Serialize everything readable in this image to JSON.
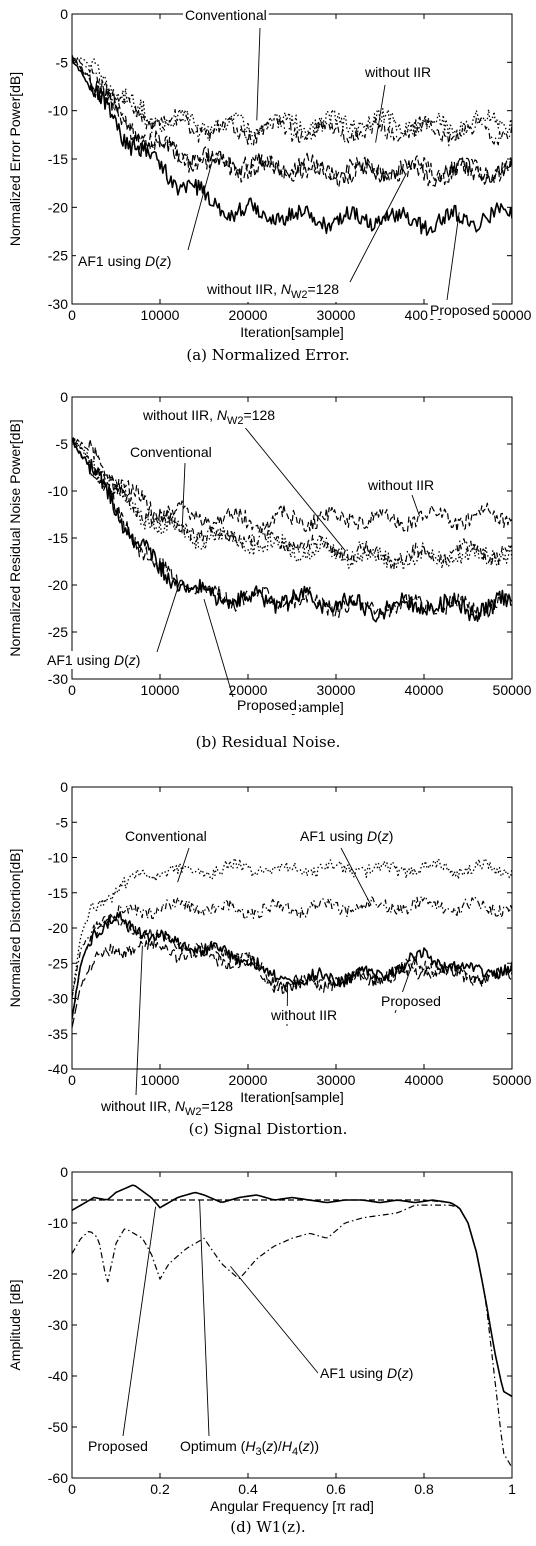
{
  "chart_data": [
    {
      "type": "line",
      "caption": "(a) Normalized Error.",
      "xlabel": "Iteration[sample]",
      "ylabel": "Normalized Error Power[dB]",
      "xlim": [
        0,
        50000
      ],
      "ylim": [
        -30,
        0
      ],
      "xticks": [
        0,
        10000,
        20000,
        30000,
        40000,
        50000
      ],
      "yticks": [
        0,
        -5,
        -10,
        -15,
        -20,
        -25,
        -30
      ],
      "series": [
        {
          "name": "Conventional",
          "style": "dotted",
          "x": [
            0,
            2500,
            5000,
            7500,
            10000,
            12500,
            15000,
            17500,
            20000,
            25000,
            30000,
            35000,
            40000,
            45000,
            50000
          ],
          "y": [
            -4.5,
            -5.5,
            -8,
            -10,
            -10.8,
            -11.2,
            -11.4,
            -11.5,
            -11.6,
            -11.3,
            -11.4,
            -11.2,
            -11.5,
            -11.3,
            -10.8
          ]
        },
        {
          "name": "without IIR",
          "style": "dashdot",
          "x": [
            0,
            2500,
            5000,
            7500,
            10000,
            12500,
            15000,
            17500,
            20000,
            25000,
            30000,
            35000,
            40000,
            45000,
            50000
          ],
          "y": [
            -4.5,
            -6,
            -8.5,
            -10.5,
            -11,
            -11.5,
            -12,
            -12,
            -12.2,
            -12,
            -12,
            -12.2,
            -12,
            -12.3,
            -12
          ]
        },
        {
          "name": "without IIR, N_W2=128",
          "style": "dashed",
          "x": [
            0,
            2500,
            5000,
            7500,
            10000,
            12500,
            15000,
            17500,
            20000,
            25000,
            30000,
            35000,
            40000,
            45000,
            50000
          ],
          "y": [
            -4.5,
            -7,
            -10,
            -12.5,
            -13.8,
            -14.8,
            -15.3,
            -15.6,
            -16,
            -16.2,
            -16.5,
            -16.4,
            -16.1,
            -16.3,
            -16
          ]
        },
        {
          "name": "AF1 using D(z)",
          "style": "longdash",
          "x": [
            0,
            2500,
            5000,
            7500,
            10000,
            12500,
            15000,
            17500,
            20000,
            25000,
            30000,
            35000,
            40000,
            45000,
            50000
          ],
          "y": [
            -4.5,
            -7,
            -10.5,
            -12.5,
            -13.5,
            -14.5,
            -15,
            -15.2,
            -15.5,
            -15.8,
            -16,
            -16.2,
            -16.5,
            -16.3,
            -16.2
          ]
        },
        {
          "name": "Proposed",
          "style": "solid",
          "x": [
            0,
            2500,
            5000,
            7500,
            10000,
            12500,
            15000,
            17500,
            20000,
            25000,
            30000,
            35000,
            40000,
            45000,
            50000
          ],
          "y": [
            -4.5,
            -8,
            -11.5,
            -14,
            -16,
            -17.5,
            -19,
            -20,
            -20.5,
            -21,
            -21.3,
            -21,
            -21.5,
            -21,
            -21
          ]
        }
      ],
      "annotations": [
        {
          "label": "Conventional",
          "html": [
            "Conventional"
          ]
        },
        {
          "label": "without IIR",
          "html": [
            "without IIR"
          ]
        },
        {
          "label": "AF1 using D(z)",
          "html": [
            "AF1 using ",
            "D",
            "(",
            "z",
            ")"
          ]
        },
        {
          "label": "without IIR, N W2=128",
          "html": [
            "without IIR, ",
            "N",
            "W2",
            "=128"
          ]
        },
        {
          "label": "Proposed",
          "html": [
            "Proposed"
          ]
        }
      ]
    },
    {
      "type": "line",
      "caption": "(b) Residual Noise.",
      "xlabel": "Iteration[sample]",
      "ylabel": "Normalized Residual Noise Power[dB]",
      "xlim": [
        0,
        50000
      ],
      "ylim": [
        -30,
        0
      ],
      "xticks": [
        0,
        10000,
        20000,
        30000,
        40000,
        50000
      ],
      "yticks": [
        0,
        -5,
        -10,
        -15,
        -20,
        -25,
        -30
      ],
      "series": [
        {
          "name": "without IIR, N_W2=128",
          "style": "dashed",
          "x": [
            0,
            2500,
            5000,
            7500,
            10000,
            15000,
            20000,
            25000,
            30000,
            35000,
            40000,
            45000,
            50000
          ],
          "y": [
            -4.5,
            -6,
            -9,
            -11,
            -12,
            -13,
            -13,
            -13,
            -12.8,
            -13,
            -12.8,
            -12.8,
            -12.5
          ]
        },
        {
          "name": "Conventional",
          "style": "dotted",
          "x": [
            0,
            2500,
            5000,
            7500,
            10000,
            15000,
            20000,
            25000,
            30000,
            35000,
            40000,
            45000,
            50000
          ],
          "y": [
            -4.5,
            -7,
            -10,
            -12.5,
            -13.5,
            -15,
            -15.5,
            -16,
            -16.5,
            -17.5,
            -17,
            -17,
            -16.5
          ]
        },
        {
          "name": "without IIR",
          "style": "dashdot",
          "x": [
            0,
            2500,
            5000,
            7500,
            10000,
            15000,
            20000,
            25000,
            30000,
            35000,
            40000,
            45000,
            50000
          ],
          "y": [
            -4.5,
            -7,
            -10,
            -12,
            -13,
            -14.5,
            -15,
            -15.5,
            -16,
            -17,
            -17,
            -16.5,
            -16.5
          ]
        },
        {
          "name": "AF1 using D(z)",
          "style": "longdash",
          "x": [
            0,
            2500,
            5000,
            7500,
            10000,
            15000,
            20000,
            25000,
            30000,
            35000,
            40000,
            45000,
            50000
          ],
          "y": [
            -4.5,
            -8,
            -12,
            -15.5,
            -18.5,
            -21,
            -21.5,
            -21.5,
            -22,
            -22.5,
            -22,
            -22.5,
            -22
          ]
        },
        {
          "name": "Proposed",
          "style": "solid",
          "x": [
            0,
            2500,
            5000,
            7500,
            10000,
            15000,
            20000,
            25000,
            30000,
            35000,
            40000,
            45000,
            50000
          ],
          "y": [
            -4.5,
            -8,
            -12,
            -15.5,
            -18.5,
            -21,
            -21.5,
            -21.5,
            -22,
            -22.5,
            -22,
            -22.5,
            -22
          ]
        }
      ],
      "annotations": [
        {
          "label": "without IIR, N W2=128",
          "html": [
            "without IIR, ",
            "N",
            "W2",
            "=128"
          ]
        },
        {
          "label": "Conventional",
          "html": [
            "Conventional"
          ]
        },
        {
          "label": "without IIR",
          "html": [
            "without IIR"
          ]
        },
        {
          "label": "AF1 using D(z)",
          "html": [
            "AF1 using ",
            "D",
            "(",
            "z",
            ")"
          ]
        },
        {
          "label": "Proposed",
          "html": [
            "Proposed"
          ]
        }
      ]
    },
    {
      "type": "line",
      "caption": "(c) Signal Distortion.",
      "xlabel": "Iteration[sample]",
      "ylabel": "Normalized Distortion[dB]",
      "xlim": [
        0,
        50000
      ],
      "ylim": [
        -40,
        0
      ],
      "xticks": [
        0,
        10000,
        20000,
        30000,
        40000,
        50000
      ],
      "yticks": [
        0,
        -5,
        -10,
        -15,
        -20,
        -25,
        -30,
        -35,
        -40
      ],
      "series": [
        {
          "name": "Conventional",
          "style": "dotted",
          "x": [
            0,
            1000,
            2500,
            5000,
            7500,
            10000,
            15000,
            20000,
            25000,
            30000,
            35000,
            40000,
            45000,
            50000
          ],
          "y": [
            -30,
            -21,
            -17,
            -14.5,
            -13,
            -12,
            -11.8,
            -11.5,
            -11.7,
            -11.6,
            -11.8,
            -11.5,
            -11.6,
            -11.5
          ]
        },
        {
          "name": "AF1 using D(z)",
          "style": "dashdot",
          "x": [
            0,
            1000,
            2500,
            5000,
            7500,
            10000,
            15000,
            20000,
            25000,
            30000,
            35000,
            40000,
            45000,
            50000
          ],
          "y": [
            -30,
            -23,
            -20,
            -18,
            -17.5,
            -17,
            -17,
            -17.5,
            -17.2,
            -17,
            -17,
            -16.8,
            -17,
            -17
          ]
        },
        {
          "name": "Proposed",
          "style": "solid",
          "x": [
            0,
            1000,
            2500,
            5000,
            7500,
            10000,
            15000,
            20000,
            22500,
            25000,
            30000,
            35000,
            40000,
            45000,
            50000
          ],
          "y": [
            -33,
            -25,
            -20,
            -19,
            -20,
            -21.5,
            -23,
            -24,
            -27,
            -27.5,
            -27,
            -26.5,
            -24,
            -26,
            -26
          ]
        },
        {
          "name": "without IIR",
          "style": "dashed",
          "x": [
            0,
            1000,
            2500,
            5000,
            7500,
            10000,
            15000,
            20000,
            22500,
            25000,
            30000,
            35000,
            40000,
            45000,
            50000
          ],
          "y": [
            -33,
            -25,
            -20,
            -19,
            -20,
            -21.5,
            -23,
            -24,
            -27.5,
            -28,
            -27.5,
            -27,
            -25,
            -27,
            -26.5
          ]
        },
        {
          "name": "without IIR, N_W2=128",
          "style": "longdash",
          "x": [
            0,
            1000,
            2500,
            5000,
            7500,
            10000,
            15000,
            20000,
            22500,
            25000,
            30000,
            35000,
            40000,
            45000,
            50000
          ],
          "y": [
            -34,
            -28,
            -25,
            -23,
            -22.5,
            -23,
            -24,
            -25,
            -28,
            -28,
            -27.5,
            -27,
            -26,
            -27,
            -27
          ]
        }
      ],
      "annotations": [
        {
          "label": "Conventional",
          "html": [
            "Conventional"
          ]
        },
        {
          "label": "AF1 using D(z)",
          "html": [
            "AF1 using ",
            "D",
            "(",
            "z",
            ")"
          ]
        },
        {
          "label": "without IIR",
          "html": [
            "without IIR"
          ]
        },
        {
          "label": "Proposed",
          "html": [
            "Proposed"
          ]
        },
        {
          "label": "without IIR, N W2=128",
          "html": [
            "without IIR, ",
            "N",
            "W2",
            "=128"
          ]
        }
      ]
    },
    {
      "type": "line",
      "caption": "(d) W1(z).",
      "xlabel": "Angular Frequency [π rad]",
      "ylabel": "Amplitude [dB]",
      "xlim": [
        0,
        1
      ],
      "ylim": [
        -60,
        0
      ],
      "xticks": [
        0,
        0.2,
        0.4,
        0.6,
        0.8,
        1
      ],
      "yticks": [
        0,
        -10,
        -20,
        -30,
        -40,
        -50,
        -60
      ],
      "series": [
        {
          "name": "Proposed",
          "style": "solid",
          "x": [
            0,
            0.02,
            0.05,
            0.08,
            0.1,
            0.14,
            0.18,
            0.2,
            0.24,
            0.28,
            0.3,
            0.34,
            0.38,
            0.42,
            0.46,
            0.5,
            0.54,
            0.58,
            0.62,
            0.66,
            0.7,
            0.74,
            0.78,
            0.82,
            0.86,
            0.88,
            0.9,
            0.92,
            0.94,
            0.96,
            0.98,
            1
          ],
          "y": [
            -7.5,
            -6.5,
            -5,
            -5.5,
            -4,
            -2.5,
            -5,
            -7,
            -5,
            -4,
            -4.5,
            -6,
            -5,
            -4.5,
            -5.5,
            -5,
            -5.5,
            -6,
            -5.5,
            -5.5,
            -6,
            -5.5,
            -6,
            -5.5,
            -6,
            -7,
            -10,
            -16,
            -25,
            -35,
            -43,
            -44
          ]
        },
        {
          "name": "Optimum (H3(z)/H4(z))",
          "style": "dashed",
          "x": [
            0,
            0.1,
            0.2,
            0.3,
            0.4,
            0.5,
            0.6,
            0.7,
            0.8,
            0.86,
            0.88,
            0.9,
            0.92,
            0.94,
            0.96,
            0.98,
            1
          ],
          "y": [
            -5.5,
            -5.5,
            -5.5,
            -5.5,
            -5.5,
            -5.5,
            -5.5,
            -5.5,
            -5.5,
            -6,
            -7,
            -10,
            -16,
            -25,
            -35,
            -43,
            -44
          ]
        },
        {
          "name": "AF1 using D(z)",
          "style": "dashdot",
          "x": [
            0,
            0.02,
            0.04,
            0.06,
            0.08,
            0.1,
            0.12,
            0.14,
            0.16,
            0.18,
            0.2,
            0.22,
            0.26,
            0.3,
            0.34,
            0.38,
            0.42,
            0.46,
            0.5,
            0.54,
            0.58,
            0.62,
            0.66,
            0.7,
            0.74,
            0.78,
            0.82,
            0.86,
            0.88,
            0.9,
            0.92,
            0.94,
            0.96,
            0.98,
            1
          ],
          "y": [
            -16,
            -13,
            -11.5,
            -13,
            -22,
            -14,
            -11,
            -12,
            -13,
            -16,
            -21,
            -18,
            -15,
            -13,
            -18,
            -21,
            -17,
            -14.5,
            -13,
            -12,
            -13,
            -10,
            -9,
            -8.5,
            -8,
            -6.5,
            -6.5,
            -6.5,
            -7,
            -10,
            -16,
            -25,
            -40,
            -55,
            -58
          ]
        }
      ],
      "annotations": [
        {
          "label": "AF1 using D(z)",
          "html": [
            "AF1 using ",
            "D",
            "(",
            "z",
            ")"
          ]
        },
        {
          "label": "Proposed",
          "html": [
            "Proposed"
          ]
        },
        {
          "label": "Optimum (H3(z)/H4(z))",
          "html": [
            "Optimum (",
            "H",
            "3",
            "(",
            "z",
            ")/",
            "H",
            "4",
            "(",
            "z",
            "))"
          ]
        }
      ]
    }
  ]
}
